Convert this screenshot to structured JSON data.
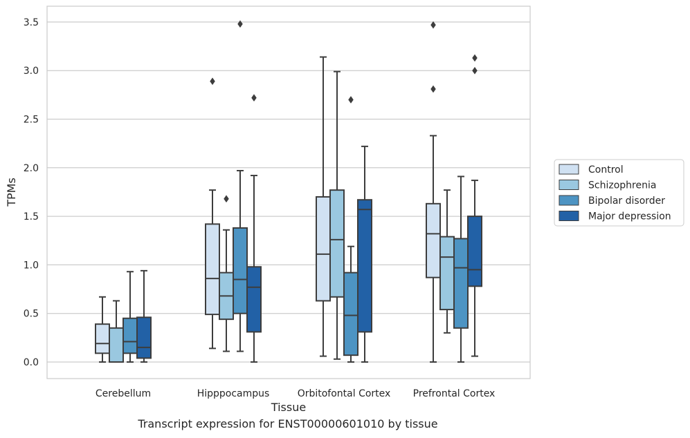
{
  "caption": "Transcript expression for ENST00000601010 by tissue",
  "chart_data": {
    "type": "box",
    "title": "",
    "xlabel": "Tissue",
    "ylabel": "TPMs",
    "ylim": [
      -0.17,
      3.65
    ],
    "yticks": [
      0.0,
      0.5,
      1.0,
      1.5,
      2.0,
      2.5,
      3.0,
      3.5
    ],
    "ytick_labels": [
      "0.0",
      "0.5",
      "1.0",
      "1.5",
      "2.0",
      "2.5",
      "3.0",
      "3.5"
    ],
    "grid": "horizontal",
    "legend_position": "right-outside",
    "categories": [
      "Cerebellum",
      "Hipppocampus",
      "Orbitofontal Cortex",
      "Prefrontal Cortex"
    ],
    "series": [
      {
        "name": "Control",
        "color": "#d0e1f2",
        "boxes": [
          {
            "whisker_low": 0.0,
            "q1": 0.09,
            "median": 0.19,
            "q3": 0.39,
            "whisker_high": 0.67,
            "outliers": []
          },
          {
            "whisker_low": 0.14,
            "q1": 0.49,
            "median": 0.86,
            "q3": 1.42,
            "whisker_high": 1.77,
            "outliers": [
              2.89
            ]
          },
          {
            "whisker_low": 0.06,
            "q1": 0.63,
            "median": 1.11,
            "q3": 1.7,
            "whisker_high": 3.14,
            "outliers": []
          },
          {
            "whisker_low": 0.0,
            "q1": 0.87,
            "median": 1.32,
            "q3": 1.63,
            "whisker_high": 2.33,
            "outliers": [
              2.81,
              3.47
            ]
          }
        ]
      },
      {
        "name": "Schizophrenia",
        "color": "#9ac8e0",
        "boxes": [
          {
            "whisker_low": 0.0,
            "q1": 0.0,
            "median": 0.0,
            "q3": 0.35,
            "whisker_high": 0.63,
            "outliers": []
          },
          {
            "whisker_low": 0.11,
            "q1": 0.44,
            "median": 0.68,
            "q3": 0.92,
            "whisker_high": 1.36,
            "outliers": [
              1.68
            ]
          },
          {
            "whisker_low": 0.03,
            "q1": 0.67,
            "median": 1.26,
            "q3": 1.77,
            "whisker_high": 2.99,
            "outliers": []
          },
          {
            "whisker_low": 0.3,
            "q1": 0.54,
            "median": 1.08,
            "q3": 1.29,
            "whisker_high": 1.77,
            "outliers": []
          }
        ]
      },
      {
        "name": "Bipolar disorder",
        "color": "#4d94c3",
        "boxes": [
          {
            "whisker_low": 0.0,
            "q1": 0.09,
            "median": 0.21,
            "q3": 0.45,
            "whisker_high": 0.93,
            "outliers": []
          },
          {
            "whisker_low": 0.11,
            "q1": 0.5,
            "median": 0.85,
            "q3": 1.38,
            "whisker_high": 1.97,
            "outliers": [
              3.48
            ]
          },
          {
            "whisker_low": 0.0,
            "q1": 0.07,
            "median": 0.48,
            "q3": 0.92,
            "whisker_high": 1.19,
            "outliers": [
              2.7
            ]
          },
          {
            "whisker_low": 0.0,
            "q1": 0.35,
            "median": 0.97,
            "q3": 1.27,
            "whisker_high": 1.91,
            "outliers": []
          }
        ]
      },
      {
        "name": "Major depression",
        "color": "#2261a6",
        "boxes": [
          {
            "whisker_low": 0.0,
            "q1": 0.04,
            "median": 0.15,
            "q3": 0.46,
            "whisker_high": 0.94,
            "outliers": []
          },
          {
            "whisker_low": 0.0,
            "q1": 0.31,
            "median": 0.77,
            "q3": 0.98,
            "whisker_high": 1.92,
            "outliers": [
              2.72
            ]
          },
          {
            "whisker_low": 0.0,
            "q1": 0.31,
            "median": 1.57,
            "q3": 1.67,
            "whisker_high": 2.22,
            "outliers": []
          },
          {
            "whisker_low": 0.06,
            "q1": 0.78,
            "median": 0.95,
            "q3": 1.5,
            "whisker_high": 1.87,
            "outliers": [
              3.0,
              3.13
            ]
          }
        ]
      }
    ]
  }
}
